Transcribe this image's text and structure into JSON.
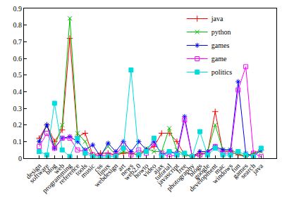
{
  "chart_data": {
    "type": "line",
    "categories": [
      "design",
      "software",
      "blog",
      "web",
      "programming",
      "reference",
      "tools",
      "music",
      "css",
      "linux",
      "webdesign",
      "art",
      "news",
      "web2.0",
      "howto",
      "video",
      "ajax",
      "tutorial",
      "javascript",
      "free",
      "photography",
      "blogs",
      "google",
      "development",
      "mac",
      "windows",
      "fun",
      "games",
      "search",
      "java"
    ],
    "series": [
      {
        "name": "java",
        "color": "#ff0000",
        "marker": "cross",
        "line_style": "solid",
        "values": [
          0.12,
          0.2,
          0.1,
          0.17,
          0.72,
          0.13,
          0.15,
          0.02,
          0.03,
          0.03,
          0.02,
          0.03,
          0.03,
          0.02,
          0.05,
          0.07,
          0.15,
          0.15,
          0.1,
          0.02,
          0.01,
          0.03,
          0.03,
          0.28,
          0.04,
          0.04,
          0.02,
          0.01,
          0.03,
          0.05
        ]
      },
      {
        "name": "python",
        "color": "#00c000",
        "marker": "x",
        "line_style": "solid",
        "values": [
          0.1,
          0.2,
          0.07,
          0.2,
          0.84,
          0.15,
          0.1,
          0.01,
          0.02,
          0.07,
          0.02,
          0.04,
          0.03,
          0.02,
          0.06,
          0.04,
          0.04,
          0.18,
          0.05,
          0.02,
          0.01,
          0.02,
          0.04,
          0.2,
          0.05,
          0.05,
          0.03,
          0.01,
          0.03,
          0.04
        ]
      },
      {
        "name": "games",
        "color": "#0000ff",
        "marker": "asterisk",
        "line_style": "solid",
        "values": [
          0.1,
          0.2,
          0.06,
          0.12,
          0.13,
          0.1,
          0.05,
          0.08,
          0.01,
          0.09,
          0.04,
          0.1,
          0.04,
          0.1,
          0.05,
          0.1,
          0.02,
          0.04,
          0.03,
          0.25,
          0.01,
          0.04,
          0.04,
          0.07,
          0.05,
          0.05,
          0.46,
          0.03,
          0.01,
          0.05
        ]
      },
      {
        "name": "game",
        "color": "#ff00ff",
        "marker": "square-open",
        "line_style": "solid",
        "values": [
          0.07,
          0.15,
          0.06,
          0.12,
          0.12,
          0.05,
          0.04,
          0.02,
          0.01,
          0.02,
          0.02,
          0.08,
          0.02,
          0.05,
          0.03,
          0.09,
          0.03,
          0.01,
          0.02,
          0.23,
          0.01,
          0.02,
          0.03,
          0.07,
          0.03,
          0.03,
          0.41,
          0.55,
          0.03,
          0.01
        ]
      },
      {
        "name": "politics",
        "color": "#00dddd",
        "marker": "square",
        "line_style": "solid",
        "values": [
          0.04,
          0.02,
          0.33,
          0.05,
          0.01,
          0.12,
          0.03,
          0.01,
          0.0,
          0.01,
          0.01,
          0.06,
          0.53,
          0.02,
          0.04,
          0.12,
          0.01,
          0.04,
          0.02,
          0.03,
          0.01,
          0.16,
          0.02,
          0.06,
          0.02,
          0.02,
          0.04,
          0.02,
          0.01,
          0.06
        ]
      }
    ],
    "ylim": [
      0,
      0.9
    ],
    "yticks": [
      0,
      0.1,
      0.2,
      0.3,
      0.4,
      0.5,
      0.6,
      0.7,
      0.8,
      0.9
    ],
    "grid": false,
    "legend": "top right"
  }
}
